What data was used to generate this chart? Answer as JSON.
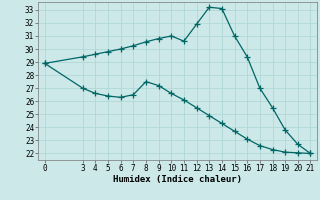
{
  "xlabel": "Humidex (Indice chaleur)",
  "bg_color": "#cce8e8",
  "grid_color": "#b0d8d8",
  "line_color": "#006666",
  "ylim": [
    21.5,
    33.6
  ],
  "yticks": [
    22,
    23,
    24,
    25,
    26,
    27,
    28,
    29,
    30,
    31,
    32,
    33
  ],
  "xlim": [
    -0.5,
    21.5
  ],
  "xticks": [
    0,
    3,
    4,
    5,
    6,
    7,
    8,
    9,
    10,
    11,
    12,
    13,
    14,
    15,
    16,
    17,
    18,
    19,
    20,
    21
  ],
  "curve1_x": [
    0,
    3,
    4,
    5,
    6,
    7,
    8,
    9,
    10,
    11,
    12,
    13,
    14,
    15,
    16,
    17,
    18,
    19,
    20,
    21
  ],
  "curve1_y": [
    28.9,
    29.4,
    29.6,
    29.8,
    30.0,
    30.25,
    30.55,
    30.8,
    31.0,
    30.6,
    31.9,
    33.2,
    33.1,
    31.0,
    29.4,
    27.0,
    25.5,
    23.8,
    22.7,
    22.0
  ],
  "curve2_x": [
    0,
    3,
    4,
    5,
    6,
    7,
    8,
    9,
    10,
    11,
    12,
    13,
    14,
    15,
    16,
    17,
    18,
    19,
    20,
    21
  ],
  "curve2_y": [
    28.9,
    27.0,
    26.6,
    26.4,
    26.3,
    26.5,
    27.5,
    27.2,
    26.6,
    26.1,
    25.5,
    24.9,
    24.3,
    23.7,
    23.1,
    22.6,
    22.3,
    22.1,
    22.05,
    22.0
  ],
  "marker": "+",
  "marker_size": 4,
  "linewidth": 0.9,
  "tick_fontsize": 5.5,
  "label_fontsize": 6.5
}
